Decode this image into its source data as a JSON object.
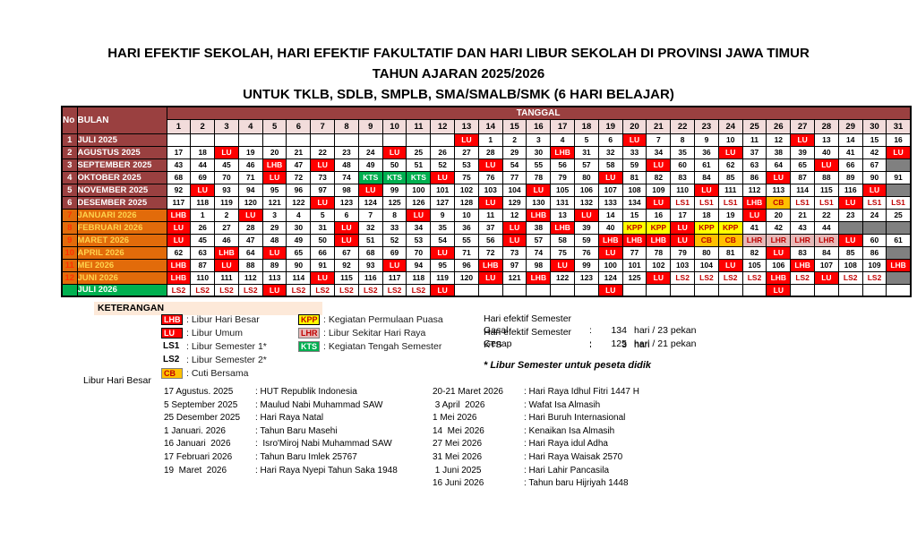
{
  "title": {
    "line1": "HARI EFEKTIF SEKOLAH, HARI EFEKTIF FAKULTATIF DAN HARI LIBUR SEKOLAH DI PROVINSI JAWA TIMUR",
    "line2": "TAHUN AJARAN 2025/2026",
    "line3": "UNTUK TKLB, SDLB, SMPLB, SMA/SMALB/SMK  (6 HARI BELAJAR)"
  },
  "colors": {
    "maroon": "#9A4040",
    "pink_header": "#F2DCDB",
    "orange_row": "#E26B0A",
    "green": "#00B050",
    "red": "#FF0000",
    "amber": "#FFC000",
    "yellow": "#FFFF00",
    "pink": "#E6B9B8",
    "gray": "#808080",
    "peach": "#FDE9D9",
    "dark_red_text": "#C00000"
  },
  "table": {
    "col_no": "No",
    "col_bulan": "BULAN",
    "col_tanggal": "TANGGAL",
    "dates": [
      "1",
      "2",
      "3",
      "4",
      "5",
      "6",
      "7",
      "8",
      "9",
      "10",
      "11",
      "12",
      "13",
      "14",
      "15",
      "16",
      "17",
      "18",
      "19",
      "20",
      "21",
      "22",
      "23",
      "24",
      "25",
      "26",
      "27",
      "28",
      "29",
      "30",
      "31"
    ],
    "rows": [
      {
        "no": "1",
        "month": "JULI  2025",
        "group": "sem1",
        "cells": [
          "",
          "",
          "",
          "",
          "",
          "",
          "",
          "",
          "",
          "",
          "",
          "",
          "LU",
          "1",
          "2",
          "3",
          "4",
          "5",
          "6",
          "LU",
          "7",
          "8",
          "9",
          "10",
          "11",
          "12",
          "LU",
          "13",
          "14",
          "15",
          "16"
        ]
      },
      {
        "no": "2",
        "month": "AGUSTUS 2025",
        "group": "sem1",
        "cells": [
          "17",
          "18",
          "LU",
          "19",
          "20",
          "21",
          "22",
          "23",
          "24",
          "LU",
          "25",
          "26",
          "27",
          "28",
          "29",
          "30",
          "LHB",
          "31",
          "32",
          "33",
          "34",
          "35",
          "36",
          "LU",
          "37",
          "38",
          "39",
          "40",
          "41",
          "42",
          "LU"
        ]
      },
      {
        "no": "3",
        "month": "SEPTEMBER 2025",
        "group": "sem1",
        "cells": [
          "43",
          "44",
          "45",
          "46",
          "LHB",
          "47",
          "LU",
          "48",
          "49",
          "50",
          "51",
          "52",
          "53",
          "LU",
          "54",
          "55",
          "56",
          "57",
          "58",
          "59",
          "LU",
          "60",
          "61",
          "62",
          "63",
          "64",
          "65",
          "LU",
          "66",
          "67",
          "X"
        ]
      },
      {
        "no": "4",
        "month": "OKTOBER 2025",
        "group": "sem1",
        "cells": [
          "68",
          "69",
          "70",
          "71",
          "LU",
          "72",
          "73",
          "74",
          "KTS",
          "KTS",
          "KTS",
          "LU",
          "75",
          "76",
          "77",
          "78",
          "79",
          "80",
          "LU",
          "81",
          "82",
          "83",
          "84",
          "85",
          "86",
          "LU",
          "87",
          "88",
          "89",
          "90",
          "91"
        ]
      },
      {
        "no": "5",
        "month": "NOVEMBER 2025",
        "group": "sem1",
        "cells": [
          "92",
          "LU",
          "93",
          "94",
          "95",
          "96",
          "97",
          "98",
          "LU",
          "99",
          "100",
          "101",
          "102",
          "103",
          "104",
          "LU",
          "105",
          "106",
          "107",
          "108",
          "109",
          "110",
          "LU",
          "111",
          "112",
          "113",
          "114",
          "115",
          "116",
          "LU",
          "X"
        ]
      },
      {
        "no": "6",
        "month": "DESEMBER 2025",
        "group": "sem1",
        "cells": [
          "117",
          "118",
          "119",
          "120",
          "121",
          "122",
          "LU",
          "123",
          "124",
          "125",
          "126",
          "127",
          "128",
          "LU",
          "129",
          "130",
          "131",
          "132",
          "133",
          "134",
          "LU",
          "LS1",
          "LS1",
          "LS1",
          "LHB",
          "CB",
          "LS1",
          "LS1",
          "LU",
          "LS1",
          "LS1"
        ]
      },
      {
        "no": "7",
        "month": "JANUARI 2026",
        "group": "sem2",
        "cells": [
          "LHB",
          "1",
          "2",
          "LU",
          "3",
          "4",
          "5",
          "6",
          "7",
          "8",
          "LU",
          "9",
          "10",
          "11",
          "12",
          "LHB",
          "13",
          "LU",
          "14",
          "15",
          "16",
          "17",
          "18",
          "19",
          "LU",
          "20",
          "21",
          "22",
          "23",
          "24",
          "25"
        ]
      },
      {
        "no": "8",
        "month": "FEBRUARI 2026",
        "group": "sem2",
        "cells": [
          "LU",
          "26",
          "27",
          "28",
          "29",
          "30",
          "31",
          "LU",
          "32",
          "33",
          "34",
          "35",
          "36",
          "37",
          "LU",
          "38",
          "LHB",
          "39",
          "40",
          "KPP",
          "KPP",
          "LU",
          "KPP",
          "KPP",
          "41",
          "42",
          "43",
          "44",
          "X",
          "X",
          "X"
        ]
      },
      {
        "no": "9",
        "month": "MARET 2026",
        "group": "sem2",
        "cells": [
          "LU",
          "45",
          "46",
          "47",
          "48",
          "49",
          "50",
          "LU",
          "51",
          "52",
          "53",
          "54",
          "55",
          "56",
          "LU",
          "57",
          "58",
          "59",
          "LHB",
          "LHB",
          "LHB",
          "LU",
          "CB",
          "CB",
          "LHR",
          "LHR",
          "LHR",
          "LHR",
          "LU",
          "60",
          "61"
        ]
      },
      {
        "no": "10",
        "month": "APRIL 2026",
        "group": "sem2",
        "cells": [
          "62",
          "63",
          "LHB",
          "64",
          "LU",
          "65",
          "66",
          "67",
          "68",
          "69",
          "70",
          "LU",
          "71",
          "72",
          "73",
          "74",
          "75",
          "76",
          "LU",
          "77",
          "78",
          "79",
          "80",
          "81",
          "82",
          "LU",
          "83",
          "84",
          "85",
          "86",
          "X"
        ]
      },
      {
        "no": "11",
        "month": "MEI 2026",
        "group": "sem2",
        "cells": [
          "LHB",
          "87",
          "LU",
          "88",
          "89",
          "90",
          "91",
          "92",
          "93",
          "LU",
          "94",
          "95",
          "96",
          "LHB",
          "97",
          "98",
          "LU",
          "99",
          "100",
          "101",
          "102",
          "103",
          "104",
          "LU",
          "105",
          "106",
          "LHB",
          "107",
          "108",
          "109",
          "LHB"
        ]
      },
      {
        "no": "12",
        "month": "JUNI 2026",
        "group": "sem2",
        "cells": [
          "LHB",
          "110",
          "111",
          "112",
          "113",
          "114",
          "LU",
          "115",
          "116",
          "117",
          "118",
          "119",
          "120",
          "LU",
          "121",
          "LHB",
          "122",
          "123",
          "124",
          "125",
          "LU",
          "LS2",
          "LS2",
          "LS2",
          "LS2",
          "LHB",
          "LS2",
          "LU",
          "LS2",
          "LS2",
          "X"
        ]
      },
      {
        "no": "",
        "month": "JULI 2026",
        "group": "next",
        "cells": [
          "LS2",
          "LS2",
          "LS2",
          "LS2",
          "LU",
          "LS2",
          "LS2",
          "LS2",
          "LS2",
          "LS2",
          "LS2",
          "LU",
          "",
          "",
          "",
          "",
          "",
          "",
          "LU",
          "",
          "",
          "",
          "",
          "",
          "",
          "LU",
          "",
          "",
          "",
          "",
          ""
        ]
      }
    ]
  },
  "keterangan": {
    "label": "KETERANGAN",
    "legend1": [
      {
        "code": "LHB",
        "chip": "red",
        "label": ": Libur Hari Besar"
      },
      {
        "code": "LU",
        "chip": "red",
        "label": ": Libur Umum"
      },
      {
        "code": "LS1",
        "chip": "none",
        "label": ":  Libur Semester 1*"
      },
      {
        "code": "LS2",
        "chip": "none",
        "label": ": Libur Semester 2*"
      },
      {
        "code": "CB",
        "chip": "amber",
        "label": ": Cuti Bersama"
      }
    ],
    "legend2": [
      {
        "code": "KPP",
        "chip": "yellow",
        "label": ": Kegiatan Permulaan Puasa"
      },
      {
        "code": "LHR",
        "chip": "pink",
        "label": ": Libur Sekitar Hari Raya"
      },
      {
        "code": "KTS",
        "chip": "green",
        "label": ": Kegiatan Tengah Semester"
      }
    ],
    "stats": [
      {
        "label": "Hari efektif Semester Gasal",
        "colon": ":",
        "value": "134",
        "unit": "hari / 23 pekan"
      },
      {
        "label": "Hari efektif Semester Genap",
        "colon": ":",
        "value": "125",
        "unit": "hari / 21 pekan"
      },
      {
        "label": "KTS",
        "colon": ":",
        "value": "3",
        "unit": "hari"
      }
    ],
    "footnote": "* Libur Semester untuk peseta didik"
  },
  "libur_hari_besar": {
    "label": "Libur Hari Besar",
    "left": [
      {
        "date": "17 Agustus. 2025",
        "desc": ": HUT Republik Indonesia"
      },
      {
        "date": "5 September 2025",
        "desc": ": Maulud Nabi Muhammad SAW"
      },
      {
        "date": "25 Desember 2025",
        "desc": ": Hari Raya Natal"
      },
      {
        "date": "1 Januari. 2026",
        "desc": ": Tahun Baru Masehi"
      },
      {
        "date": "16 Januari  2026",
        "desc": ":  Isro'Miroj Nabi Muhammad SAW"
      },
      {
        "date": "17 Februari 2026",
        "desc": ": Tahun Baru Imlek 25767"
      },
      {
        "date": "19  Maret  2026",
        "desc": ": Hari Raya Nyepi Tahun Saka 1948"
      }
    ],
    "right": [
      {
        "date": "20-21 Maret 2026",
        "desc": ": Hari Raya Idhul Fitri 1447 H"
      },
      {
        "date": " 3 April  2026",
        "desc": ": Wafat Isa Almasih"
      },
      {
        "date": "1 Mei 2026",
        "desc": ": Hari Buruh Internasional"
      },
      {
        "date": "14  Mei 2026",
        "desc": ": Kenaikan Isa Almasih"
      },
      {
        "date": "27 Mei 2026",
        "desc": ": Hari Raya idul Adha"
      },
      {
        "date": "31 Mei 2026",
        "desc": ": Hari Raya Waisak 2570"
      },
      {
        "date": " 1 Juni 2025",
        "desc": ": Hari Lahir Pancasila"
      },
      {
        "date": "16 Juni 2026",
        "desc": ": Tahun baru Hijriyah 1448"
      }
    ]
  }
}
